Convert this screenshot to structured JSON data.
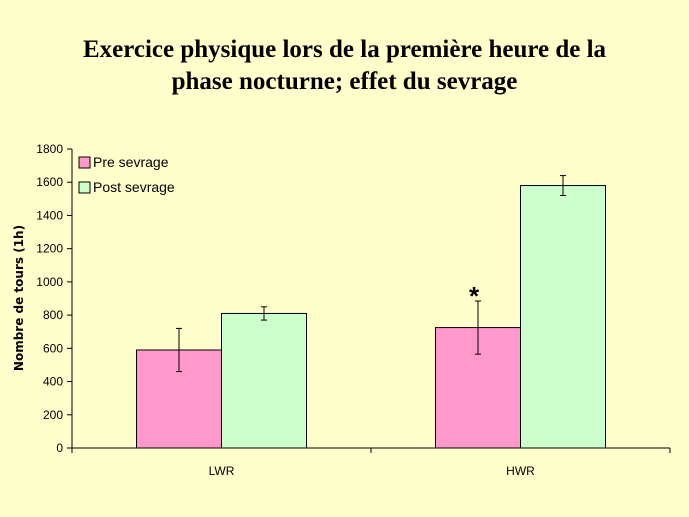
{
  "colors": {
    "background": "#ffffcc",
    "pre": "#ff99cc",
    "post": "#ccffcc"
  },
  "chart_data": {
    "type": "bar",
    "title_line1": "Exercice physique lors de la première heure de la",
    "title_line2": "phase nocturne; effet du sevrage",
    "ylabel": "Nombre de tours (1h)",
    "xlabel": "",
    "categories": [
      "LWR",
      "HWR"
    ],
    "ylim": [
      0,
      1800
    ],
    "yticks": [
      0,
      200,
      400,
      600,
      800,
      1000,
      1200,
      1400,
      1600,
      1800
    ],
    "grid": false,
    "legend_position": "top-left",
    "series": [
      {
        "name": "Pre sevrage",
        "values": [
          590,
          725
        ],
        "errors": [
          130,
          160
        ],
        "color": "#ff99cc"
      },
      {
        "name": "Post sevrage",
        "values": [
          810,
          1580
        ],
        "errors": [
          40,
          60
        ],
        "color": "#ccffcc"
      }
    ],
    "annotations": [
      {
        "text": "*",
        "category": "HWR",
        "series": "Pre sevrage"
      }
    ]
  }
}
